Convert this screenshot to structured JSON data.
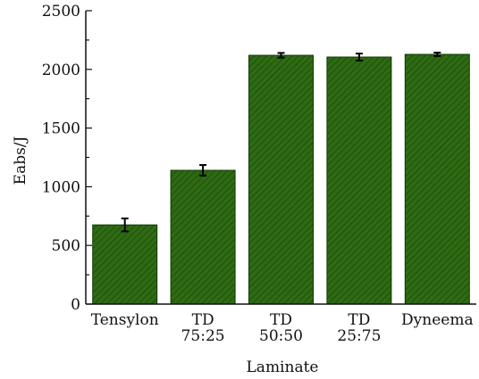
{
  "chart_data": {
    "type": "bar",
    "title": "",
    "xlabel": "Laminate",
    "ylabel": "Eabs/J",
    "ylim": [
      0,
      2500
    ],
    "yticks": [
      0,
      500,
      1000,
      1500,
      2000,
      2500
    ],
    "grid": false,
    "legend": "none",
    "categories": [
      [
        "Tensylon"
      ],
      [
        "TD",
        "75:25"
      ],
      [
        "TD",
        "50:50"
      ],
      [
        "TD",
        "25:75"
      ],
      [
        "Dyneema"
      ]
    ],
    "values": [
      675,
      1140,
      2120,
      2105,
      2128
    ],
    "errors": [
      55,
      45,
      20,
      30,
      15
    ],
    "colors": {
      "bar_fill": "#2e6b14",
      "bar_hatch": "#1f4f0a",
      "bar_edge": "#123a05",
      "axis": "#111111"
    }
  }
}
